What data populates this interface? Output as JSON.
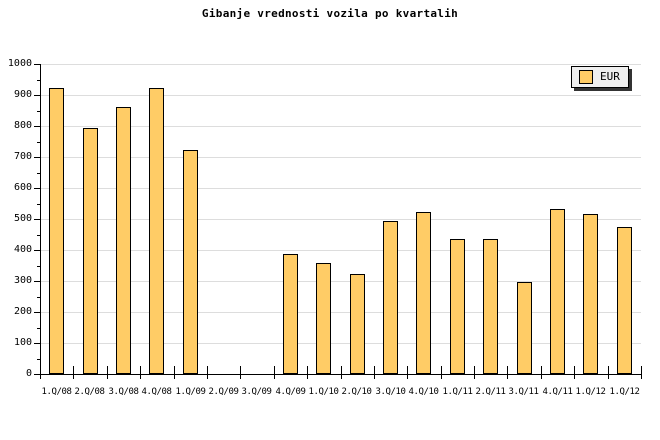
{
  "chart_data": {
    "type": "bar",
    "title": "Gibanje vrednosti vozila po kvartalih",
    "categories": [
      "1.Q/08",
      "2.Q/08",
      "3.Q/08",
      "4.Q/08",
      "1.Q/09",
      "2.Q/09",
      "3.Q/09",
      "4.Q/09",
      "1.Q/10",
      "2.Q/10",
      "3.Q/10",
      "4.Q/10",
      "1.Q/11",
      "2.Q/11",
      "3.Q/11",
      "4.Q/11",
      "1.Q/12",
      "1.Q/12"
    ],
    "values": [
      922,
      792,
      860,
      922,
      723,
      0,
      0,
      386,
      358,
      322,
      494,
      523,
      437,
      437,
      297,
      531,
      516,
      475
    ],
    "series_name": "EUR",
    "ylim": [
      0,
      1000
    ],
    "ytick_major": 100,
    "ytick_minor": 50,
    "grid": "horizontal-major-lines",
    "legend": {
      "label": "EUR",
      "position": "top-right"
    },
    "colors": {
      "bar_fill": "#FFCC66",
      "bar_border": "#000000",
      "gridline": "#DDDDDD",
      "axis": "#000000",
      "legend_bg": "#EFEFEF",
      "legend_shadow": "#333333"
    }
  }
}
